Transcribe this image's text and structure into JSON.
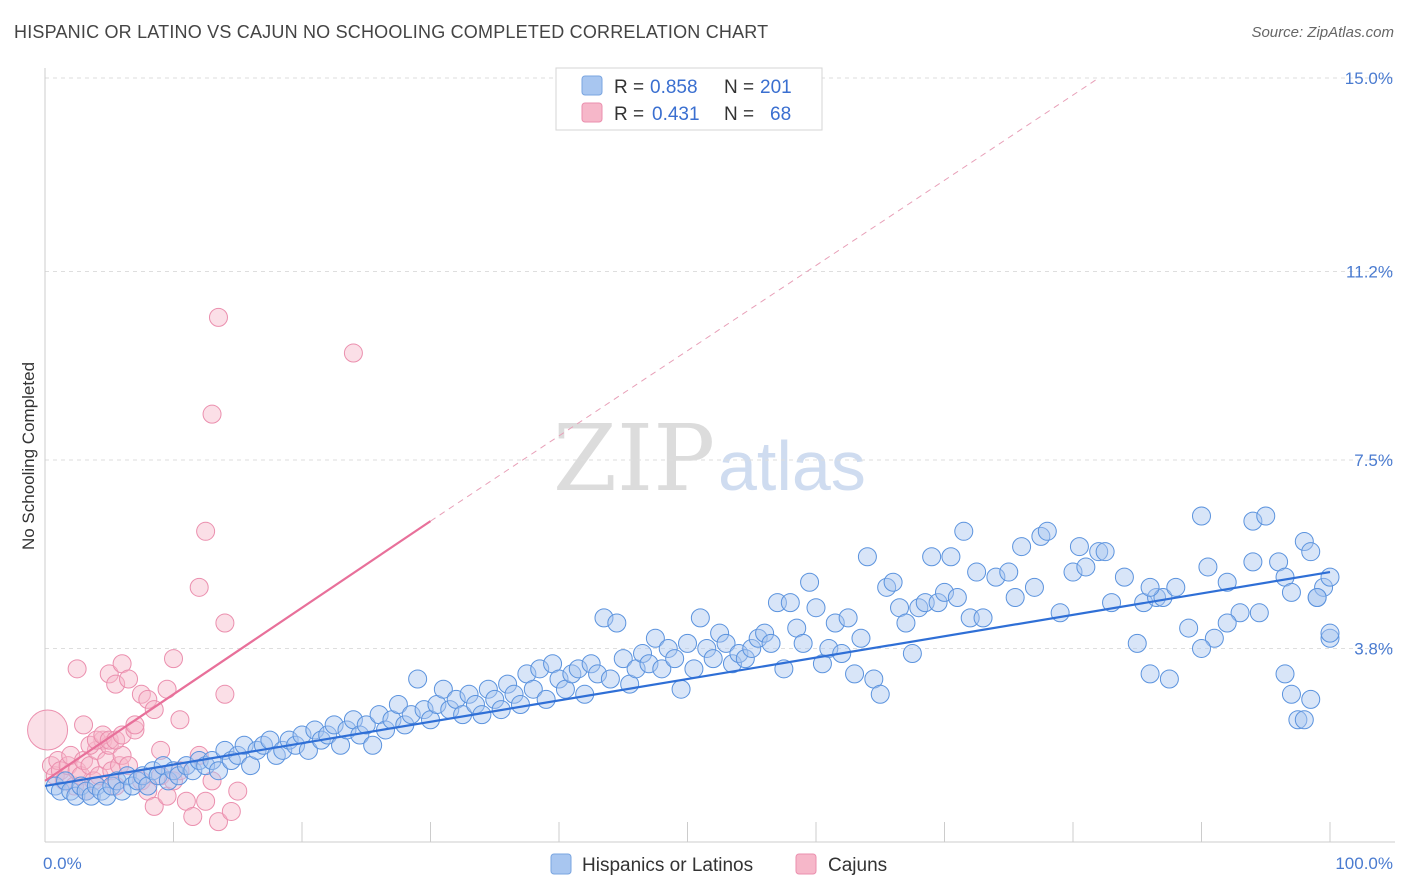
{
  "title": "HISPANIC OR LATINO VS CAJUN NO SCHOOLING COMPLETED CORRELATION CHART",
  "source": "Source: ZipAtlas.com",
  "watermark": {
    "zip": "ZIP",
    "atlas": "atlas"
  },
  "legend_top": {
    "series": [
      {
        "r_label": "R =",
        "r_value": "0.858",
        "n_label": "N =",
        "n_value": "201",
        "color": "#a8c6f0"
      },
      {
        "r_label": "R =",
        "r_value": "0.431",
        "n_label": "N =",
        "n_value": "68",
        "color": "#f6b7c9"
      }
    ]
  },
  "legend_bottom": [
    {
      "label": "Hispanics or Latinos",
      "color": "#a8c6f0"
    },
    {
      "label": "Cajuns",
      "color": "#f6b7c9"
    }
  ],
  "chart_data": {
    "type": "scatter",
    "title": "HISPANIC OR LATINO VS CAJUN NO SCHOOLING COMPLETED CORRELATION CHART",
    "xlabel": "",
    "ylabel": "No Schooling Completed",
    "xlim": [
      0,
      100
    ],
    "ylim": [
      0,
      15
    ],
    "x_tick_labels": [
      "0.0%",
      "100.0%"
    ],
    "y_ticks": [
      3.8,
      7.5,
      11.2,
      15.0
    ],
    "y_tick_labels": [
      "3.8%",
      "7.5%",
      "11.2%",
      "15.0%"
    ],
    "grid": "horizontal dashed",
    "legend_position": "top-center",
    "colors": {
      "hispanic": "#5b93de",
      "hispanic_fill": "#a8c6f0",
      "cajun": "#e8709a",
      "cajun_fill": "#f6b7c9"
    },
    "series": [
      {
        "name": "Hispanics or Latinos",
        "trend": {
          "x": [
            0,
            100
          ],
          "y": [
            1.1,
            5.3
          ],
          "style": "solid"
        },
        "points": [
          [
            0.8,
            1.1
          ],
          [
            1.2,
            1.0
          ],
          [
            1.6,
            1.2
          ],
          [
            2.0,
            1.0
          ],
          [
            2.4,
            0.9
          ],
          [
            2.8,
            1.1
          ],
          [
            3.2,
            1.0
          ],
          [
            3.6,
            0.9
          ],
          [
            4.0,
            1.1
          ],
          [
            4.4,
            1.0
          ],
          [
            4.8,
            0.9
          ],
          [
            5.2,
            1.1
          ],
          [
            5.6,
            1.2
          ],
          [
            6.0,
            1.0
          ],
          [
            6.4,
            1.3
          ],
          [
            6.8,
            1.1
          ],
          [
            7.2,
            1.2
          ],
          [
            7.6,
            1.3
          ],
          [
            8.0,
            1.1
          ],
          [
            8.4,
            1.4
          ],
          [
            8.8,
            1.3
          ],
          [
            9.2,
            1.5
          ],
          [
            9.6,
            1.2
          ],
          [
            10.0,
            1.4
          ],
          [
            10.4,
            1.3
          ],
          [
            11.0,
            1.5
          ],
          [
            11.5,
            1.4
          ],
          [
            12.0,
            1.6
          ],
          [
            12.5,
            1.5
          ],
          [
            13.0,
            1.6
          ],
          [
            13.5,
            1.4
          ],
          [
            14.0,
            1.8
          ],
          [
            14.5,
            1.6
          ],
          [
            15.0,
            1.7
          ],
          [
            15.5,
            1.9
          ],
          [
            16.0,
            1.5
          ],
          [
            16.5,
            1.8
          ],
          [
            17.0,
            1.9
          ],
          [
            17.5,
            2.0
          ],
          [
            18.0,
            1.7
          ],
          [
            18.5,
            1.8
          ],
          [
            19.0,
            2.0
          ],
          [
            19.5,
            1.9
          ],
          [
            20.0,
            2.1
          ],
          [
            20.5,
            1.8
          ],
          [
            21.0,
            2.2
          ],
          [
            21.5,
            2.0
          ],
          [
            22.0,
            2.1
          ],
          [
            22.5,
            2.3
          ],
          [
            23.0,
            1.9
          ],
          [
            23.5,
            2.2
          ],
          [
            24.0,
            2.4
          ],
          [
            24.5,
            2.1
          ],
          [
            25.0,
            2.3
          ],
          [
            25.5,
            1.9
          ],
          [
            26.0,
            2.5
          ],
          [
            26.5,
            2.2
          ],
          [
            27.0,
            2.4
          ],
          [
            27.5,
            2.7
          ],
          [
            28.0,
            2.3
          ],
          [
            28.5,
            2.5
          ],
          [
            29.0,
            3.2
          ],
          [
            29.5,
            2.6
          ],
          [
            30.0,
            2.4
          ],
          [
            30.5,
            2.7
          ],
          [
            31.0,
            3.0
          ],
          [
            31.5,
            2.6
          ],
          [
            32.0,
            2.8
          ],
          [
            32.5,
            2.5
          ],
          [
            33.0,
            2.9
          ],
          [
            33.5,
            2.7
          ],
          [
            34.0,
            2.5
          ],
          [
            34.5,
            3.0
          ],
          [
            35.0,
            2.8
          ],
          [
            35.5,
            2.6
          ],
          [
            36.0,
            3.1
          ],
          [
            36.5,
            2.9
          ],
          [
            37.0,
            2.7
          ],
          [
            37.5,
            3.3
          ],
          [
            38.0,
            3.0
          ],
          [
            38.5,
            3.4
          ],
          [
            39.0,
            2.8
          ],
          [
            39.5,
            3.5
          ],
          [
            40.0,
            3.2
          ],
          [
            40.5,
            3.0
          ],
          [
            41.0,
            3.3
          ],
          [
            41.5,
            3.4
          ],
          [
            42.0,
            2.9
          ],
          [
            42.5,
            3.5
          ],
          [
            43.0,
            3.3
          ],
          [
            43.5,
            4.4
          ],
          [
            44.0,
            3.2
          ],
          [
            44.5,
            4.3
          ],
          [
            45.0,
            3.6
          ],
          [
            45.5,
            3.1
          ],
          [
            46.0,
            3.4
          ],
          [
            46.5,
            3.7
          ],
          [
            47.0,
            3.5
          ],
          [
            47.5,
            4.0
          ],
          [
            48.0,
            3.4
          ],
          [
            48.5,
            3.8
          ],
          [
            49.0,
            3.6
          ],
          [
            49.5,
            3.0
          ],
          [
            50.0,
            3.9
          ],
          [
            50.5,
            3.4
          ],
          [
            51.0,
            4.4
          ],
          [
            51.5,
            3.8
          ],
          [
            52.0,
            3.6
          ],
          [
            52.5,
            4.1
          ],
          [
            53.0,
            3.9
          ],
          [
            53.5,
            3.5
          ],
          [
            54.0,
            3.7
          ],
          [
            54.5,
            3.6
          ],
          [
            55.0,
            3.8
          ],
          [
            55.5,
            4.0
          ],
          [
            56.0,
            4.1
          ],
          [
            56.5,
            3.9
          ],
          [
            57.0,
            4.7
          ],
          [
            57.5,
            3.4
          ],
          [
            58.0,
            4.7
          ],
          [
            58.5,
            4.2
          ],
          [
            59.0,
            3.9
          ],
          [
            59.5,
            5.1
          ],
          [
            60.0,
            4.6
          ],
          [
            60.5,
            3.5
          ],
          [
            61.0,
            3.8
          ],
          [
            61.5,
            4.3
          ],
          [
            62.0,
            3.7
          ],
          [
            62.5,
            4.4
          ],
          [
            63.0,
            3.3
          ],
          [
            63.5,
            4.0
          ],
          [
            64.0,
            5.6
          ],
          [
            64.5,
            3.2
          ],
          [
            65.0,
            2.9
          ],
          [
            65.5,
            5.0
          ],
          [
            66.0,
            5.1
          ],
          [
            66.5,
            4.6
          ],
          [
            67.0,
            4.3
          ],
          [
            67.5,
            3.7
          ],
          [
            68.0,
            4.6
          ],
          [
            68.5,
            4.7
          ],
          [
            69.0,
            5.6
          ],
          [
            69.5,
            4.7
          ],
          [
            70.0,
            4.9
          ],
          [
            70.5,
            5.6
          ],
          [
            71.0,
            4.8
          ],
          [
            71.5,
            6.1
          ],
          [
            72.0,
            4.4
          ],
          [
            72.5,
            5.3
          ],
          [
            73.0,
            4.4
          ],
          [
            74.0,
            5.2
          ],
          [
            75.0,
            5.3
          ],
          [
            75.5,
            4.8
          ],
          [
            76.0,
            5.8
          ],
          [
            77.0,
            5.0
          ],
          [
            77.5,
            6.0
          ],
          [
            78.0,
            6.1
          ],
          [
            79.0,
            4.5
          ],
          [
            80.0,
            5.3
          ],
          [
            80.5,
            5.8
          ],
          [
            81.0,
            5.4
          ],
          [
            82.0,
            5.7
          ],
          [
            82.5,
            5.7
          ],
          [
            83.0,
            4.7
          ],
          [
            84.0,
            5.2
          ],
          [
            85.0,
            3.9
          ],
          [
            85.5,
            4.7
          ],
          [
            86.0,
            3.3
          ],
          [
            86.5,
            4.8
          ],
          [
            87.0,
            4.8
          ],
          [
            87.5,
            3.2
          ],
          [
            88.0,
            5.0
          ],
          [
            89.0,
            4.2
          ],
          [
            90.0,
            6.4
          ],
          [
            90.5,
            5.4
          ],
          [
            91.0,
            4.0
          ],
          [
            92.0,
            5.1
          ],
          [
            93.0,
            4.5
          ],
          [
            94.0,
            6.3
          ],
          [
            94.5,
            4.5
          ],
          [
            95.0,
            6.4
          ],
          [
            96.0,
            5.5
          ],
          [
            96.5,
            5.2
          ],
          [
            97.0,
            4.9
          ],
          [
            98.0,
            5.9
          ],
          [
            98.5,
            5.7
          ],
          [
            99.0,
            4.8
          ],
          [
            99.5,
            5.0
          ],
          [
            100.0,
            5.2
          ],
          [
            100.5,
            4.0
          ],
          [
            101.0,
            4.1
          ],
          [
            96.5,
            3.3
          ],
          [
            97.0,
            2.9
          ],
          [
            97.5,
            2.4
          ],
          [
            98.0,
            2.4
          ],
          [
            98.5,
            2.8
          ],
          [
            99.0,
            4.8
          ],
          [
            94.0,
            5.5
          ],
          [
            92.0,
            4.3
          ],
          [
            90.0,
            3.8
          ],
          [
            86.0,
            5.0
          ]
        ]
      },
      {
        "name": "Cajuns",
        "trend": {
          "x": [
            0,
            30
          ],
          "y": [
            1.2,
            6.3
          ],
          "style": "solid",
          "extended_to": [
            82,
            15.0
          ],
          "extended_style": "dashed"
        },
        "points": [
          [
            0.2,
            2.2
          ],
          [
            0.5,
            1.5
          ],
          [
            0.8,
            1.3
          ],
          [
            1.0,
            1.6
          ],
          [
            1.2,
            1.4
          ],
          [
            1.5,
            1.2
          ],
          [
            1.8,
            1.5
          ],
          [
            2.0,
            1.7
          ],
          [
            2.3,
            1.1
          ],
          [
            2.5,
            1.4
          ],
          [
            2.8,
            1.3
          ],
          [
            3.0,
            1.6
          ],
          [
            3.2,
            1.0
          ],
          [
            3.5,
            1.5
          ],
          [
            3.8,
            1.2
          ],
          [
            4.0,
            1.8
          ],
          [
            4.2,
            1.3
          ],
          [
            4.5,
            2.0
          ],
          [
            4.8,
            1.6
          ],
          [
            5.0,
            1.9
          ],
          [
            5.2,
            1.4
          ],
          [
            5.5,
            1.1
          ],
          [
            5.8,
            1.5
          ],
          [
            6.0,
            1.7
          ],
          [
            2.5,
            3.4
          ],
          [
            3.0,
            2.3
          ],
          [
            3.5,
            1.9
          ],
          [
            4.0,
            2.0
          ],
          [
            4.5,
            2.1
          ],
          [
            5.0,
            2.0
          ],
          [
            5.5,
            2.0
          ],
          [
            6.0,
            2.1
          ],
          [
            6.5,
            1.5
          ],
          [
            7.0,
            2.2
          ],
          [
            7.5,
            1.2
          ],
          [
            8.0,
            1.0
          ],
          [
            8.5,
            0.7
          ],
          [
            9.0,
            1.3
          ],
          [
            9.5,
            0.9
          ],
          [
            10.0,
            1.2
          ],
          [
            10.5,
            1.4
          ],
          [
            11.0,
            0.8
          ],
          [
            11.5,
            0.5
          ],
          [
            12.0,
            1.7
          ],
          [
            12.5,
            0.8
          ],
          [
            13.0,
            1.2
          ],
          [
            13.5,
            0.4
          ],
          [
            14.0,
            2.9
          ],
          [
            14.5,
            0.6
          ],
          [
            15.0,
            1.0
          ],
          [
            5.0,
            3.3
          ],
          [
            5.5,
            3.1
          ],
          [
            6.0,
            3.5
          ],
          [
            6.5,
            3.2
          ],
          [
            7.0,
            2.3
          ],
          [
            7.5,
            2.9
          ],
          [
            8.0,
            2.8
          ],
          [
            8.5,
            2.6
          ],
          [
            9.0,
            1.8
          ],
          [
            9.5,
            3.0
          ],
          [
            10.0,
            3.6
          ],
          [
            10.5,
            2.4
          ],
          [
            12.0,
            5.0
          ],
          [
            12.5,
            6.1
          ],
          [
            13.0,
            8.4
          ],
          [
            13.5,
            10.3
          ],
          [
            14.0,
            4.3
          ],
          [
            24.0,
            9.6
          ]
        ]
      }
    ]
  }
}
